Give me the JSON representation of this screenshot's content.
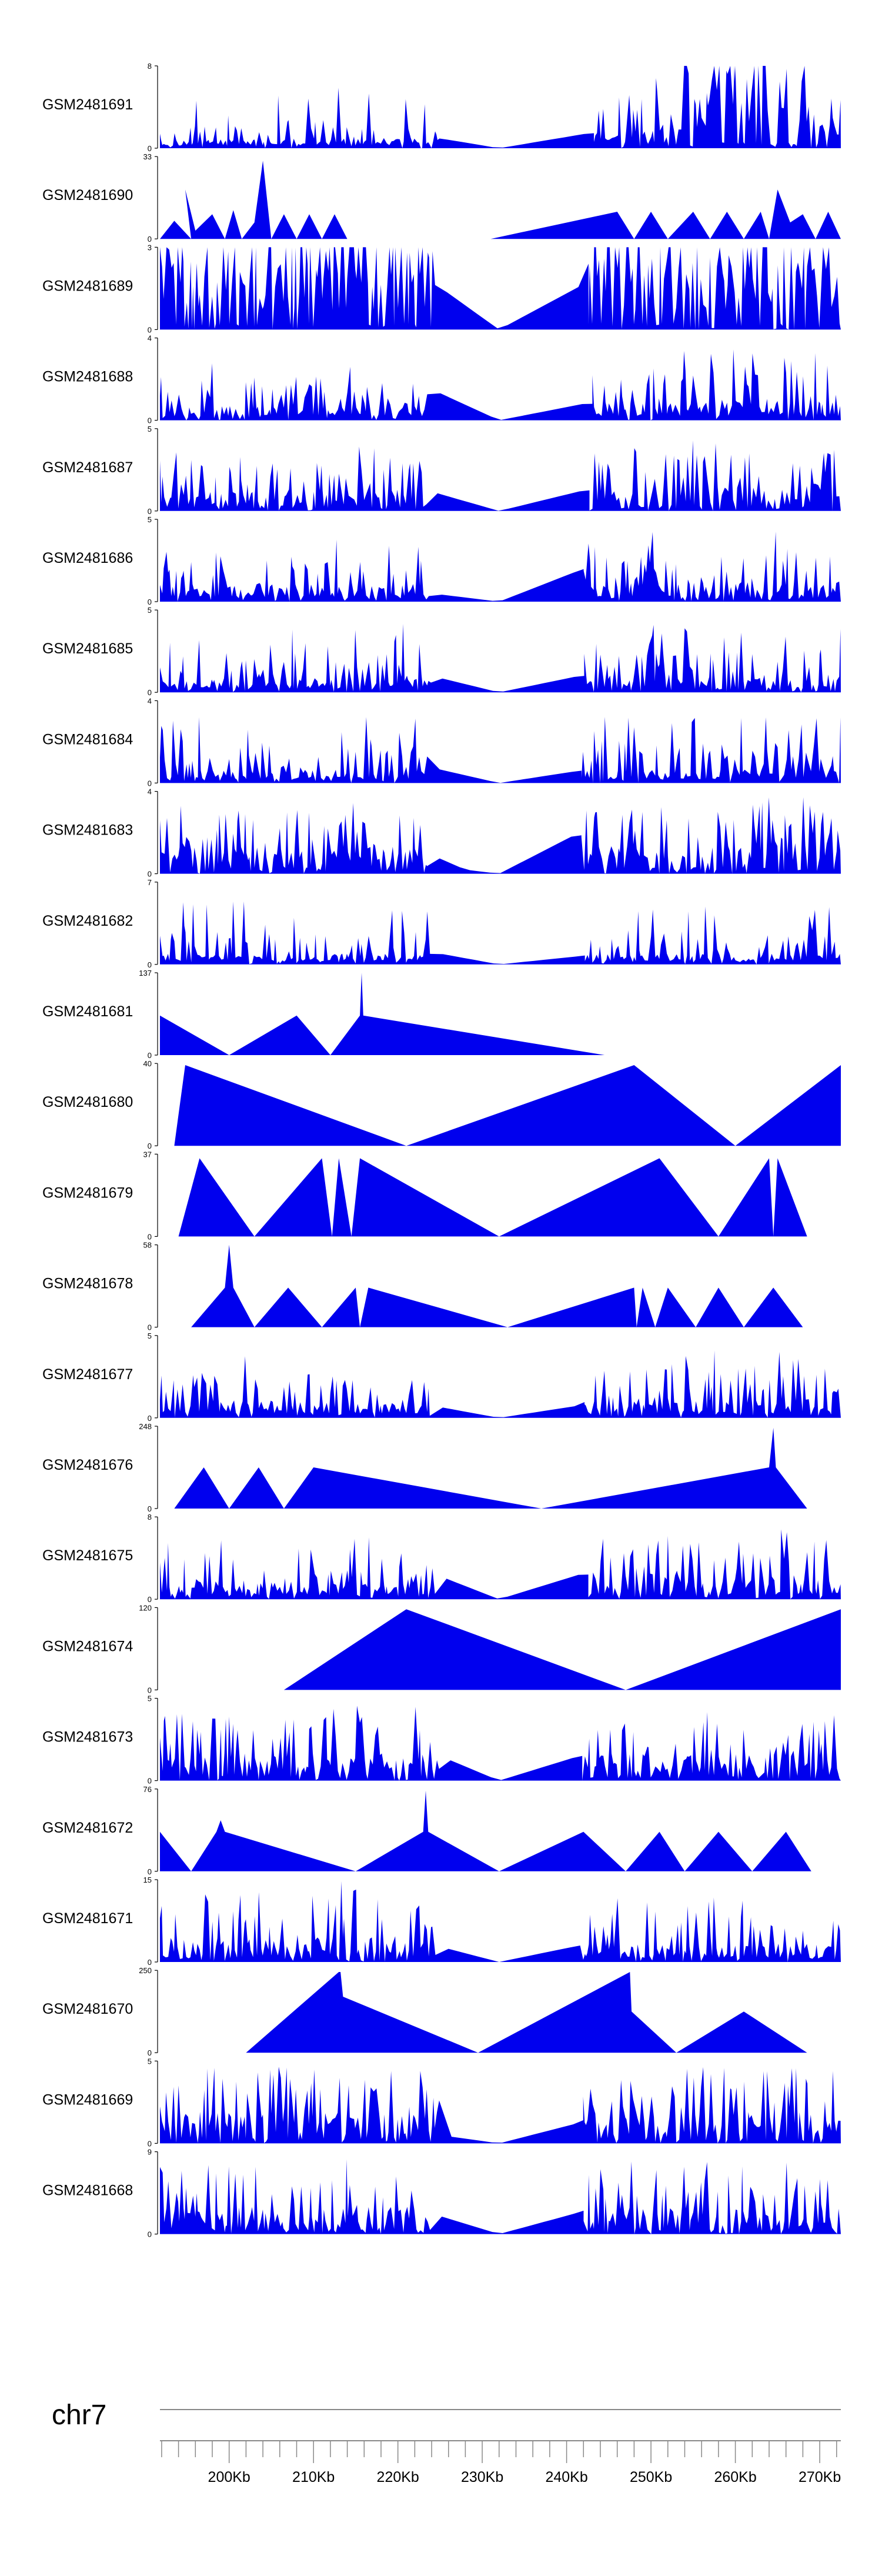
{
  "chart_data": {
    "type": "area",
    "chromosome": "chr7",
    "xlim_kb": [
      191.8,
      272.5
    ],
    "x_tick_unit": "Kb",
    "major_tick_labels": [
      "200Kb",
      "210Kb",
      "220Kb",
      "230Kb",
      "240Kb",
      "250Kb",
      "260Kb",
      "270Kb"
    ],
    "major_ticks_kb": [
      200,
      210,
      220,
      230,
      240,
      250,
      260,
      270
    ],
    "minor_tick_step_kb": 2,
    "fill_color": "#0000ee",
    "axis_color": "#000000",
    "ruler_color": "#888888",
    "tracks": [
      {
        "name": "GSM2481691",
        "ymax": "8",
        "ymin": "0",
        "style": "dense",
        "seed": 11,
        "anchors": [
          [
            191.8,
            0.1
          ],
          [
            225,
            0.12
          ],
          [
            232,
            0
          ],
          [
            242.5,
            0.18
          ],
          [
            250,
            0.2
          ],
          [
            260,
            1.0
          ],
          [
            272.5,
            0.2
          ]
        ],
        "gap": [
          225,
          242.5
        ]
      },
      {
        "name": "GSM2481690",
        "ymax": "33",
        "ymin": "0",
        "style": "sparse",
        "points": [
          [
            191.8,
            0
          ],
          [
            193.5,
            0.22
          ],
          [
            195.5,
            0
          ],
          [
            194.8,
            0.6
          ],
          [
            196,
            0.1
          ],
          [
            198,
            0.3
          ],
          [
            199.5,
            0
          ],
          [
            200.5,
            0.35
          ],
          [
            201.5,
            0
          ],
          [
            203,
            0.2
          ],
          [
            204,
            0.95
          ],
          [
            205,
            0
          ],
          [
            206.5,
            0.3
          ],
          [
            208,
            0
          ],
          [
            209.5,
            0.3
          ],
          [
            211,
            0
          ],
          [
            212.5,
            0.3
          ],
          [
            214,
            0
          ],
          [
            231,
            0
          ],
          [
            246,
            0.33
          ],
          [
            248,
            0
          ],
          [
            250,
            0.33
          ],
          [
            252,
            0
          ],
          [
            255,
            0.33
          ],
          [
            257,
            0
          ],
          [
            259,
            0.33
          ],
          [
            261,
            0
          ],
          [
            263,
            0.33
          ],
          [
            264,
            0
          ],
          [
            265,
            0.6
          ],
          [
            266.5,
            0.2
          ],
          [
            268,
            0.3
          ],
          [
            269.5,
            0
          ],
          [
            271,
            0.33
          ],
          [
            272.5,
            0
          ]
        ]
      },
      {
        "name": "GSM2481689",
        "ymax": "3",
        "ymin": "0",
        "style": "dense",
        "seed": 23,
        "anchors": [
          [
            191.8,
            0.8
          ],
          [
            224,
            0.7
          ],
          [
            224.5,
            0.55
          ],
          [
            232,
            0
          ],
          [
            242,
            0.55
          ],
          [
            242.5,
            0.8
          ],
          [
            272.5,
            0.8
          ]
        ],
        "gap": [
          224.5,
          242
        ]
      },
      {
        "name": "GSM2481688",
        "ymax": "4",
        "ymin": "0",
        "style": "dense",
        "seed": 37,
        "anchors": [
          [
            191.8,
            0.15
          ],
          [
            223,
            0.2
          ],
          [
            223.5,
            0.4
          ],
          [
            232,
            0
          ],
          [
            242,
            0.2
          ],
          [
            243,
            0.2
          ],
          [
            270,
            0.25
          ],
          [
            272.5,
            0.2
          ]
        ],
        "gap": [
          223.5,
          242
        ]
      },
      {
        "name": "GSM2481687",
        "ymax": "5",
        "ymin": "0",
        "style": "dense",
        "seed": 41,
        "anchors": [
          [
            191.8,
            0.2
          ],
          [
            223,
            0.25
          ],
          [
            223.5,
            0.25
          ],
          [
            232,
            0
          ],
          [
            242,
            0.25
          ],
          [
            243,
            0.25
          ],
          [
            272.5,
            0.3
          ]
        ],
        "gap": [
          223.5,
          242
        ]
      },
      {
        "name": "GSM2481686",
        "ymax": "5",
        "ymin": "0",
        "style": "dense",
        "seed": 53,
        "anchors": [
          [
            191.8,
            0.2
          ],
          [
            223,
            0.2
          ],
          [
            224,
            0.1
          ],
          [
            232,
            0
          ],
          [
            242,
            0.4
          ],
          [
            243,
            0.2
          ],
          [
            272.5,
            0.25
          ]
        ],
        "gap": [
          224,
          242
        ]
      },
      {
        "name": "GSM2481685",
        "ymax": "5",
        "ymin": "0",
        "style": "dense",
        "seed": 59,
        "anchors": [
          [
            191.8,
            0.15
          ],
          [
            223,
            0.2
          ],
          [
            224,
            0.2
          ],
          [
            232,
            0
          ],
          [
            241.5,
            0.2
          ],
          [
            243,
            0.2
          ],
          [
            272.5,
            0.2
          ]
        ],
        "gap": [
          224,
          241.5
        ]
      },
      {
        "name": "GSM2481684",
        "ymax": "4",
        "ymin": "0",
        "style": "dense",
        "seed": 67,
        "anchors": [
          [
            191.8,
            0.15
          ],
          [
            223,
            0.15
          ],
          [
            223.5,
            0.2
          ],
          [
            232,
            0
          ],
          [
            241.5,
            0.15
          ],
          [
            243,
            0.15
          ],
          [
            272.5,
            0.15
          ]
        ],
        "gap": [
          223.5,
          241.5
        ]
      },
      {
        "name": "GSM2481683",
        "ymax": "4",
        "ymin": "0",
        "style": "dense",
        "seed": 71,
        "anchors": [
          [
            191.8,
            0.3
          ],
          [
            223,
            0.3
          ],
          [
            223.5,
            0.25
          ],
          [
            228,
            0.05
          ],
          [
            232,
            0
          ],
          [
            241.5,
            0.5
          ],
          [
            243,
            0.3
          ],
          [
            272.5,
            0.35
          ]
        ],
        "gap": [
          223.5,
          241.5
        ]
      },
      {
        "name": "GSM2481682",
        "ymax": "7",
        "ymin": "0",
        "style": "dense",
        "seed": 83,
        "anchors": [
          [
            191.8,
            0.12
          ],
          [
            223,
            0.12
          ],
          [
            224,
            0.15
          ],
          [
            232,
            0
          ],
          [
            241.5,
            0.1
          ],
          [
            243,
            0.12
          ],
          [
            272.5,
            0.12
          ]
        ],
        "gap": [
          224,
          241.5
        ]
      },
      {
        "name": "GSM2481681",
        "ymax": "137",
        "ymin": "0",
        "style": "sparse",
        "points": [
          [
            191.8,
            0.48
          ],
          [
            200,
            0
          ],
          [
            208,
            0.48
          ],
          [
            212,
            0
          ],
          [
            215.5,
            0.48
          ],
          [
            215.7,
            1.0
          ],
          [
            215.9,
            0.48
          ],
          [
            244.5,
            0
          ]
        ]
      },
      {
        "name": "GSM2481680",
        "ymax": "40",
        "ymin": "0",
        "style": "sparse",
        "points": [
          [
            193.5,
            0
          ],
          [
            194.8,
            0.98
          ],
          [
            221,
            0
          ],
          [
            248,
            0.98
          ],
          [
            260,
            0
          ],
          [
            272.5,
            0.98
          ],
          [
            272.5,
            0
          ]
        ]
      },
      {
        "name": "GSM2481679",
        "ymax": "37",
        "ymin": "0",
        "style": "sparse",
        "points": [
          [
            194,
            0
          ],
          [
            196.5,
            0.95
          ],
          [
            203,
            0
          ],
          [
            211,
            0.95
          ],
          [
            212.2,
            0
          ],
          [
            213,
            0.95
          ],
          [
            214.5,
            0
          ],
          [
            215.5,
            0.95
          ],
          [
            232,
            0
          ],
          [
            251,
            0.95
          ],
          [
            258,
            0
          ],
          [
            264,
            0.95
          ],
          [
            264.5,
            0
          ],
          [
            265,
            0.95
          ],
          [
            268.5,
            0
          ]
        ]
      },
      {
        "name": "GSM2481678",
        "ymax": "58",
        "ymin": "0",
        "style": "sparse",
        "points": [
          [
            195.5,
            0
          ],
          [
            199.5,
            0.48
          ],
          [
            200,
            1.0
          ],
          [
            200.5,
            0.48
          ],
          [
            203,
            0
          ],
          [
            207,
            0.48
          ],
          [
            211,
            0
          ],
          [
            215,
            0.48
          ],
          [
            215.5,
            0
          ],
          [
            216.5,
            0.48
          ],
          [
            233,
            0
          ],
          [
            248,
            0.48
          ],
          [
            248.3,
            0
          ],
          [
            249,
            0.48
          ],
          [
            250.5,
            0
          ],
          [
            252,
            0.48
          ],
          [
            255.3,
            0
          ],
          [
            258,
            0.48
          ],
          [
            261,
            0
          ],
          [
            264.5,
            0.48
          ],
          [
            268,
            0
          ]
        ]
      },
      {
        "name": "GSM2481677",
        "ymax": "5",
        "ymin": "0",
        "style": "dense",
        "seed": 97,
        "anchors": [
          [
            191.8,
            0.2
          ],
          [
            223,
            0.15
          ],
          [
            224,
            0.15
          ],
          [
            232,
            0
          ],
          [
            241.5,
            0.15
          ],
          [
            243,
            0.25
          ],
          [
            272.5,
            0.2
          ]
        ],
        "gap": [
          224,
          241.5
        ]
      },
      {
        "name": "GSM2481676",
        "ymax": "248",
        "ymin": "0",
        "style": "sparse",
        "points": [
          [
            193.5,
            0
          ],
          [
            197,
            0.5
          ],
          [
            200,
            0
          ],
          [
            203.5,
            0.5
          ],
          [
            206.5,
            0
          ],
          [
            210,
            0.5
          ],
          [
            237,
            0
          ],
          [
            264,
            0.5
          ],
          [
            264.5,
            0.98
          ],
          [
            264.8,
            0.5
          ],
          [
            268.5,
            0
          ]
        ]
      },
      {
        "name": "GSM2481675",
        "ymax": "8",
        "ymin": "0",
        "style": "dense",
        "seed": 101,
        "anchors": [
          [
            191.8,
            0.2
          ],
          [
            224,
            0.2
          ],
          [
            224.5,
            0.3
          ],
          [
            232,
            0
          ],
          [
            241.5,
            0.3
          ],
          [
            243,
            0.3
          ],
          [
            272.5,
            0.2
          ]
        ],
        "gap": [
          224.5,
          241.5
        ]
      },
      {
        "name": "GSM2481674",
        "ymax": "120",
        "ymin": "0",
        "style": "sparse",
        "points": [
          [
            206.5,
            0
          ],
          [
            221,
            0.98
          ],
          [
            247,
            0
          ],
          [
            272.5,
            0.98
          ],
          [
            272.5,
            0
          ]
        ]
      },
      {
        "name": "GSM2481673",
        "ymax": "5",
        "ymin": "0",
        "style": "dense",
        "seed": 113,
        "anchors": [
          [
            191.8,
            0.3
          ],
          [
            224,
            0.3
          ],
          [
            225,
            0.3
          ],
          [
            232,
            0
          ],
          [
            241.5,
            0.3
          ],
          [
            243,
            0.3
          ],
          [
            272.5,
            0.3
          ]
        ],
        "gap": [
          225,
          241.5
        ]
      },
      {
        "name": "GSM2481672",
        "ymax": "76",
        "ymin": "0",
        "style": "sparse",
        "points": [
          [
            191.8,
            0.48
          ],
          [
            195.5,
            0
          ],
          [
            198.5,
            0.48
          ],
          [
            199,
            0.62
          ],
          [
            199.5,
            0.48
          ],
          [
            215,
            0
          ],
          [
            223,
            0.48
          ],
          [
            223.3,
            0.98
          ],
          [
            223.6,
            0.48
          ],
          [
            232,
            0
          ],
          [
            242,
            0.48
          ],
          [
            247,
            0
          ],
          [
            251,
            0.48
          ],
          [
            254,
            0
          ],
          [
            258,
            0.48
          ],
          [
            262,
            0
          ],
          [
            266,
            0.48
          ],
          [
            269,
            0
          ]
        ]
      },
      {
        "name": "GSM2481671",
        "ymax": "15",
        "ymin": "0",
        "style": "dense",
        "seed": 127,
        "anchors": [
          [
            191.8,
            0.2
          ],
          [
            212.5,
            0.3
          ],
          [
            213.3,
            0.98
          ],
          [
            214,
            0.3
          ],
          [
            224.5,
            0.2
          ],
          [
            232,
            0
          ],
          [
            241.5,
            0.2
          ],
          [
            243,
            0.2
          ],
          [
            272.5,
            0.2
          ]
        ],
        "gap": [
          224.5,
          241.5
        ]
      },
      {
        "name": "GSM2481670",
        "ymax": "250",
        "ymin": "0",
        "style": "sparse",
        "points": [
          [
            202,
            0
          ],
          [
            213,
            0.98
          ],
          [
            213.2,
            0.98
          ],
          [
            213.5,
            0.68
          ],
          [
            229.5,
            0
          ],
          [
            247.5,
            0.98
          ],
          [
            247.7,
            0.5
          ],
          [
            253,
            0
          ],
          [
            261,
            0.5
          ],
          [
            268.5,
            0
          ]
        ]
      },
      {
        "name": "GSM2481669",
        "ymax": "5",
        "ymin": "0",
        "style": "dense",
        "seed": 131,
        "anchors": [
          [
            191.8,
            0.35
          ],
          [
            223,
            0.35
          ],
          [
            225,
            0.1
          ],
          [
            232,
            0
          ],
          [
            241.5,
            0.25
          ],
          [
            243,
            0.35
          ],
          [
            272.5,
            0.35
          ]
        ],
        "gap": [
          225,
          241.5
        ]
      },
      {
        "name": "GSM2481668",
        "ymax": "9",
        "ymin": "0",
        "style": "dense",
        "seed": 139,
        "anchors": [
          [
            191.8,
            0.3
          ],
          [
            223,
            0.3
          ],
          [
            224,
            0.25
          ],
          [
            232,
            0
          ],
          [
            241,
            0.25
          ],
          [
            242.5,
            0.3
          ],
          [
            272.5,
            0.3
          ]
        ],
        "gap": [
          224,
          241
        ]
      }
    ]
  }
}
